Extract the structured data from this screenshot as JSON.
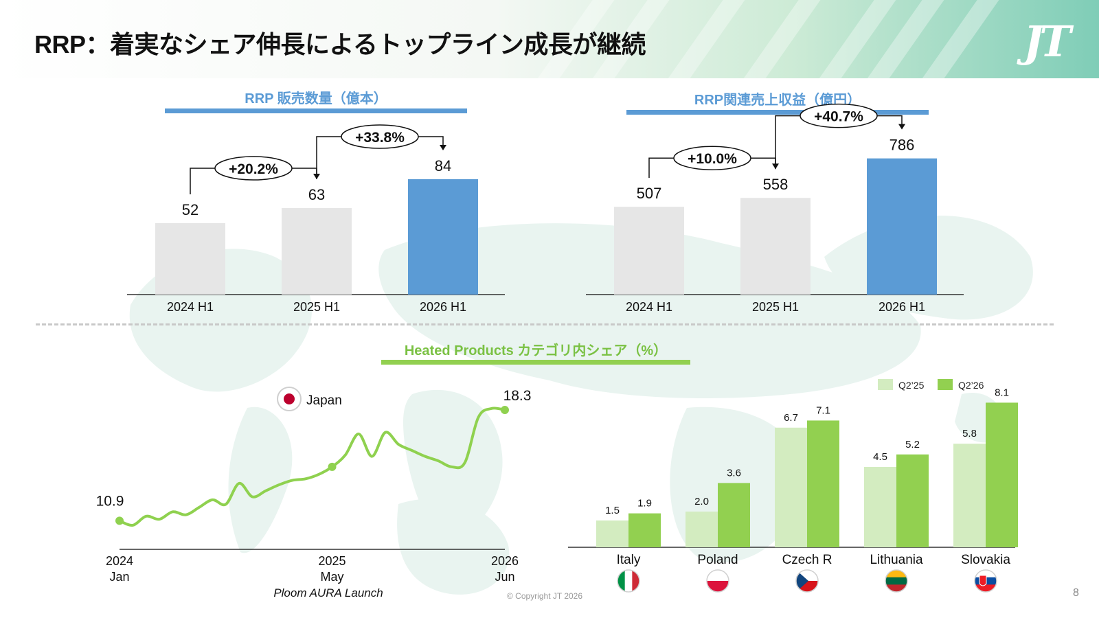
{
  "header": {
    "title": "RRP：着実なシェア伸長によるトップライン成長が継続",
    "logo_text": "JT"
  },
  "colors": {
    "grey_bar": "#e6e6e6",
    "blue_bar": "#5b9bd5",
    "light_green": "#d3ecc0",
    "green": "#92d050",
    "line_green": "#8fd14f",
    "title_blue": "#5b9bd5",
    "title_green": "#7ac143"
  },
  "footer": {
    "copyright": "© Copyright JT 2026",
    "page": "8"
  },
  "chart_data": [
    {
      "type": "bar",
      "title": "RRP 販売数量（億本）",
      "categories": [
        "2024 H1",
        "2025 H1",
        "2026 H1"
      ],
      "values": [
        52,
        63,
        84
      ],
      "value_labels": [
        "52",
        "63",
        "84"
      ],
      "highlight": "2026 H1",
      "ylim": [
        0,
        120
      ],
      "growth": [
        {
          "from": "2024 H1",
          "to": "2025 H1",
          "label": "+20.2%"
        },
        {
          "from": "2025 H1",
          "to": "2026 H1",
          "label": "+33.8%"
        }
      ]
    },
    {
      "type": "bar",
      "title": "RRP関連売上収益（億円）",
      "categories": [
        "2024 H1",
        "2025 H1",
        "2026 H1"
      ],
      "values": [
        507,
        558,
        786
      ],
      "value_labels": [
        "507",
        "558",
        "786"
      ],
      "highlight": "2026 H1",
      "ylim": [
        0,
        1070
      ],
      "growth": [
        {
          "from": "2024 H1",
          "to": "2025 H1",
          "label": "+10.0%"
        },
        {
          "from": "2025 H1",
          "to": "2026 H1",
          "label": "+40.7%"
        }
      ]
    },
    {
      "type": "line",
      "title": "Heated Products カテゴリ内シェア（%）",
      "legend": "Japan",
      "x_ticks": [
        {
          "year": "2024",
          "month": "Jan"
        },
        {
          "year": "2025",
          "month": "May"
        },
        {
          "year": "2026",
          "month": "Jun"
        }
      ],
      "annotation": "Ploom AURA Launch",
      "x": [
        "2024-01",
        "2024-02",
        "2024-03",
        "2024-04",
        "2024-05",
        "2024-06",
        "2024-07",
        "2024-08",
        "2024-09",
        "2024-10",
        "2024-11",
        "2024-12",
        "2025-01",
        "2025-02",
        "2025-03",
        "2025-04",
        "2025-05",
        "2025-06",
        "2025-07",
        "2025-08",
        "2025-09",
        "2025-10",
        "2025-11",
        "2025-12",
        "2026-01",
        "2026-02",
        "2026-03",
        "2026-04",
        "2026-05",
        "2026-06"
      ],
      "y": [
        10.9,
        10.6,
        11.2,
        11.0,
        11.5,
        11.3,
        11.8,
        12.3,
        12.0,
        13.4,
        12.5,
        12.9,
        13.3,
        13.6,
        13.7,
        14.0,
        14.5,
        15.3,
        16.7,
        15.2,
        16.8,
        16.0,
        15.6,
        15.2,
        14.9,
        14.5,
        14.8,
        17.8,
        18.4,
        18.3
      ],
      "start_label": "10.9",
      "end_label": "18.3",
      "ylim": [
        10,
        20
      ]
    },
    {
      "type": "bar",
      "title": "",
      "categories": [
        "Italy",
        "Poland",
        "Czech R",
        "Lithuania",
        "Slovakia"
      ],
      "series": [
        {
          "name": "Q2’25",
          "values": [
            1.5,
            2.0,
            6.7,
            4.5,
            5.8
          ],
          "labels": [
            "1.5",
            "2.0",
            "6.7",
            "4.5",
            "5.8"
          ]
        },
        {
          "name": "Q2’26",
          "values": [
            1.9,
            3.6,
            7.1,
            5.2,
            8.1
          ],
          "labels": [
            "1.9",
            "3.6",
            "7.1",
            "5.2",
            "8.1"
          ]
        }
      ],
      "ylim": [
        0,
        10
      ],
      "legend_position": "top-right",
      "flags": [
        [
          "#009246",
          "#ffffff",
          "#ce2b37"
        ],
        [
          "#ffffff",
          "#dc143c"
        ],
        [
          "#ffffff",
          "#d7141a",
          "#11457e"
        ],
        [
          "#fdb913",
          "#006a44",
          "#c1272d"
        ],
        [
          "#ffffff",
          "#0b4ea2",
          "#ee1c25"
        ]
      ]
    }
  ]
}
